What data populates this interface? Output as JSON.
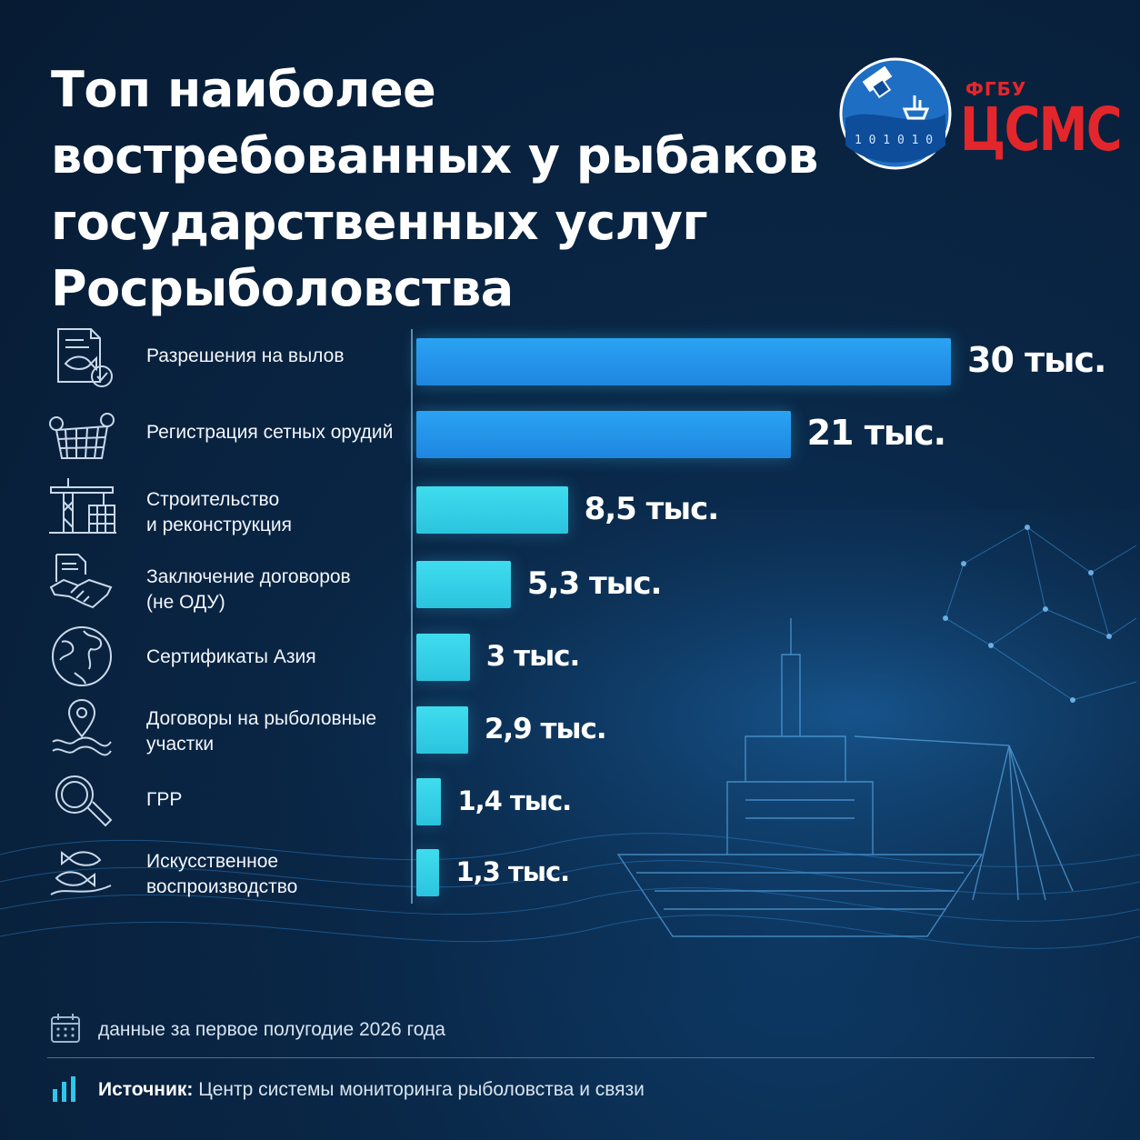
{
  "title": {
    "lines": [
      "Топ наиболее",
      "востребованных у рыбаков",
      "государственных услуг",
      "Росрыболовства"
    ]
  },
  "logo": {
    "org": "ФГБУ",
    "name": "ЦСМС",
    "globe_digits": "1 0 1 0 1 0",
    "color": "#e3262b"
  },
  "colors": {
    "bar_top": "#2aa3f2",
    "bar_bottom": "#3fdcee",
    "background": "#071b33"
  },
  "chart_data": {
    "type": "bar",
    "orientation": "horizontal",
    "categories": [
      "Разрешения на вылов",
      "Регистрация сетных орудий",
      "Строительство\nи реконструкция",
      "Заключение договоров\n(не ОДУ)",
      "Сертификаты Азия",
      "Договоры на рыболовные\nучастки",
      "ГРР",
      "Искусственное\nвоспроизводство"
    ],
    "icons": [
      "document-fish-icon",
      "fishing-net-icon",
      "crane-icon",
      "handshake-icon",
      "globe-icon",
      "location-waves-icon",
      "magnifier-icon",
      "fish-icon"
    ],
    "values": [
      30,
      21,
      8.5,
      5.3,
      3,
      2.9,
      1.4,
      1.3
    ],
    "value_labels": [
      "30 тыс.",
      "21 тыс.",
      "8,5 тыс.",
      "5,3 тыс.",
      "3 тыс.",
      "2,9 тыс.",
      "1,4 тыс.",
      "1,3 тыс."
    ],
    "unit": "тыс.",
    "xlim": [
      0,
      30
    ]
  },
  "footer": {
    "note": "данные за первое полугодие 2026 года",
    "source_label": "Источник:",
    "source_text": " Центр системы мониторинга рыболовства и связи"
  }
}
